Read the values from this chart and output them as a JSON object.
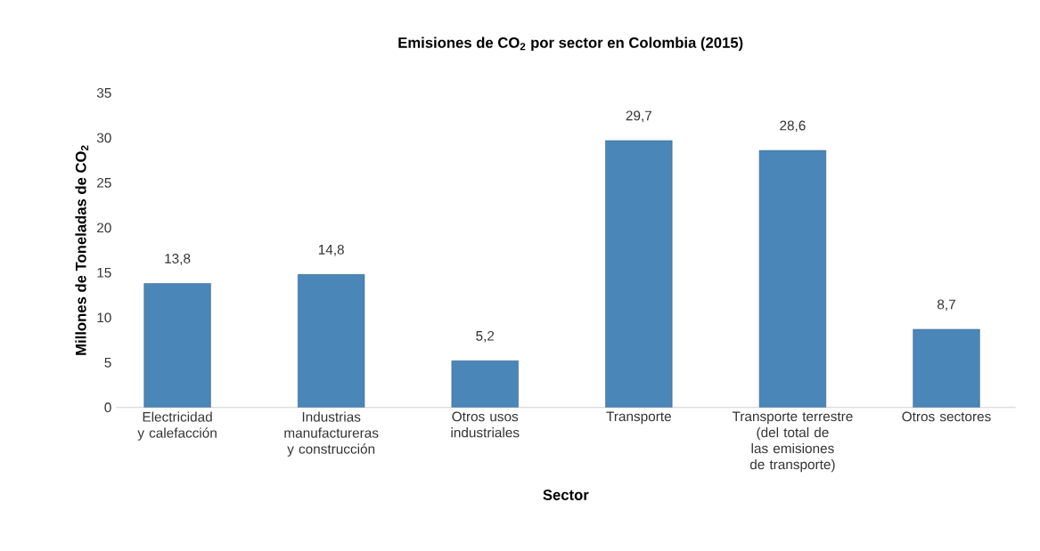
{
  "chart_data": {
    "type": "bar",
    "title": "Emisiones de CO$_{2}$ por sector en Colombia (2015)",
    "xlabel": "Sector",
    "ylabel": "Millones de Toneladas de CO$_{2}$",
    "categories": [
      "Electricidad y calefacción",
      "Industrias manufactureras y construcción",
      "Otros usos industriales",
      "Transporte",
      "Transporte terrestre (del total de las emisiones de transporte)",
      "Otros sectores"
    ],
    "values": [
      13.8,
      14.8,
      5.2,
      29.7,
      28.6,
      8.7
    ],
    "value_labels": [
      "13,8",
      "14,8",
      "5,2",
      "29,7",
      "28,6",
      "8,7"
    ],
    "color": "#4a86b8",
    "ylim": [
      0,
      35
    ],
    "yticks": [
      0,
      5,
      10,
      15,
      20,
      25,
      30,
      35
    ]
  }
}
